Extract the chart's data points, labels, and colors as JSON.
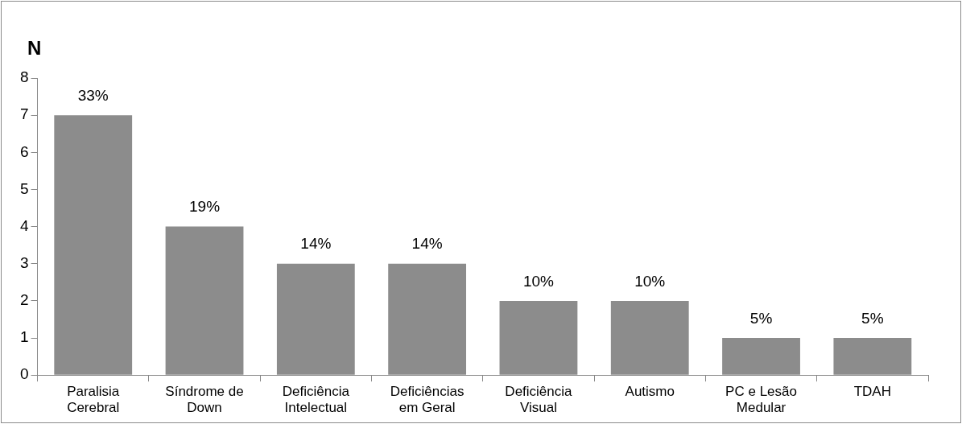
{
  "chart_data": {
    "type": "bar",
    "ylabel": "N",
    "categories": [
      "Paralisia Cerebral",
      "Síndrome de Down",
      "Deficiência Intelectual",
      "Deficiências em Geral",
      "Deficiência Visual",
      "Autismo",
      "PC e Lesão Medular",
      "TDAH"
    ],
    "values": [
      7,
      4,
      3,
      3,
      2,
      2,
      1,
      1
    ],
    "annotations": [
      {
        "text": "33%",
        "x": "Paralisia Cerebral",
        "y": 7
      },
      {
        "text": "19%",
        "x": "Síndrome de Down",
        "y": 4
      },
      {
        "text": "14%",
        "x": "Deficiência Intelectual",
        "y": 3
      },
      {
        "text": "14%",
        "x": "Deficiências em Geral",
        "y": 3
      },
      {
        "text": "10%",
        "x": "Deficiência Visual",
        "y": 2
      },
      {
        "text": "10%",
        "x": "Autismo",
        "y": 2
      },
      {
        "text": "5%",
        "x": "PC e Lesão Medular",
        "y": 1
      },
      {
        "text": "5%",
        "x": "TDAH",
        "y": 1
      }
    ],
    "color": "#8c8c8c",
    "ylim": [
      0,
      8
    ],
    "yticks": [
      0,
      1,
      2,
      3,
      4,
      5,
      6,
      7,
      8
    ],
    "grid": false,
    "legend": false
  }
}
